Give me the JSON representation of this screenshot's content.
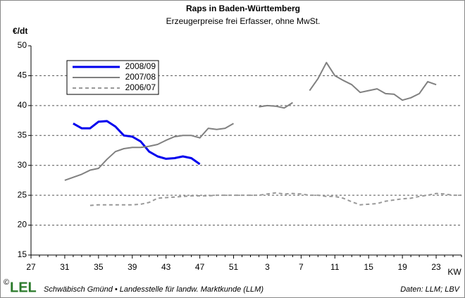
{
  "chart_data": {
    "type": "line",
    "title": "Raps in Baden-Württemberg",
    "subtitle": "Erzeugerpreise frei Erfasser, ohne MwSt.",
    "y_label": "€/dt",
    "x_label": "KW",
    "categories": [
      "27",
      null,
      null,
      null,
      "31",
      null,
      null,
      null,
      "35",
      null,
      null,
      null,
      "39",
      null,
      null,
      null,
      "43",
      null,
      null,
      null,
      "47",
      null,
      null,
      null,
      "51",
      null,
      null,
      null,
      "3",
      null,
      null,
      null,
      "7",
      null,
      null,
      null,
      "11",
      null,
      null,
      null,
      "15",
      null,
      null,
      null,
      "19",
      null,
      null,
      null,
      "23",
      null,
      null,
      null
    ],
    "series": [
      {
        "name": "2008/09",
        "color": "#0000ee",
        "width": 3,
        "dash": false,
        "values": [
          null,
          null,
          null,
          null,
          null,
          37,
          36.2,
          36.2,
          37.3,
          37.4,
          36.5,
          35,
          34.8,
          34,
          32.3,
          31.5,
          31.1,
          31.2,
          31.5,
          31.2,
          30.2,
          null,
          null,
          null,
          null,
          null,
          null,
          null,
          null,
          null,
          null,
          null,
          null,
          null,
          null,
          null,
          null,
          null,
          null,
          null,
          null,
          null,
          null,
          null,
          null,
          null,
          null,
          null,
          null,
          null,
          null,
          null
        ]
      },
      {
        "name": "2007/08",
        "color": "#808080",
        "width": 2,
        "dash": false,
        "values": [
          null,
          null,
          null,
          null,
          27.5,
          28,
          28.5,
          29.2,
          29.5,
          31,
          32.3,
          32.8,
          33,
          33,
          33.2,
          33.5,
          34.2,
          34.8,
          35,
          35,
          34.6,
          36.2,
          36,
          36.2,
          37,
          null,
          null,
          39.8,
          40,
          39.9,
          39.6,
          40.5,
          null,
          42.5,
          44.5,
          47.2,
          45,
          44.2,
          43.5,
          42.2,
          42.5,
          42.8,
          42,
          41.9,
          40.9,
          41.3,
          42,
          44,
          43.5,
          null,
          null,
          null
        ]
      },
      {
        "name": "2006/07",
        "color": "#999999",
        "width": 2,
        "dash": true,
        "values": [
          null,
          null,
          null,
          null,
          null,
          null,
          null,
          23.3,
          23.4,
          23.4,
          23.4,
          23.4,
          23.4,
          23.5,
          23.8,
          24.5,
          24.6,
          24.7,
          24.8,
          24.9,
          24.9,
          24.9,
          25,
          25,
          25,
          25,
          25,
          25,
          25.2,
          25.4,
          25.2,
          25.3,
          25.2,
          25,
          25,
          24.8,
          24.8,
          24.5,
          23.9,
          23.4,
          23.5,
          23.6,
          24,
          24.2,
          24.4,
          24.5,
          24.8,
          25,
          25.3,
          25.2,
          25,
          25
        ]
      }
    ],
    "ylim": [
      15,
      50
    ],
    "yticks": [
      15,
      20,
      25,
      30,
      35,
      40,
      45,
      50
    ],
    "grid": true,
    "legend": "top-left",
    "footer": {
      "copyright": "©",
      "logo": "LEL",
      "source_left": "Schwäbisch Gmünd • Landesstelle für landw. Marktkunde (LLM)",
      "source_right": "Daten: LLM; LBV"
    }
  }
}
